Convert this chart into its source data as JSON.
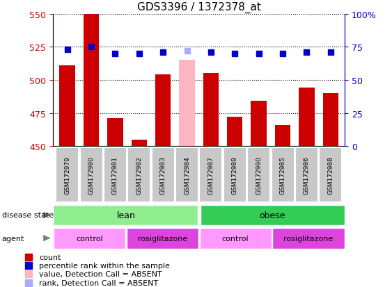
{
  "title": "GDS3396 / 1372378_at",
  "samples": [
    "GSM172979",
    "GSM172980",
    "GSM172981",
    "GSM172982",
    "GSM172983",
    "GSM172984",
    "GSM172987",
    "GSM172989",
    "GSM172990",
    "GSM172985",
    "GSM172986",
    "GSM172988"
  ],
  "count_values": [
    511,
    550,
    471,
    455,
    504,
    null,
    505,
    472,
    484,
    466,
    494,
    490
  ],
  "absent_value": 515,
  "absent_index": 5,
  "rank_values": [
    73,
    75,
    70,
    70,
    71,
    null,
    71,
    70,
    70,
    70,
    71,
    71
  ],
  "absent_rank": 72,
  "ylim_left": [
    450,
    550
  ],
  "ylim_right": [
    0,
    100
  ],
  "yticks_left": [
    450,
    475,
    500,
    525,
    550
  ],
  "yticks_right": [
    0,
    25,
    50,
    75,
    100
  ],
  "bar_color": "#CC0000",
  "absent_bar_color": "#FFB6C1",
  "rank_color": "#0000CC",
  "absent_rank_color": "#AAAAFF",
  "lean_color": "#90EE90",
  "obese_color": "#33CC55",
  "control_color": "#FF99FF",
  "rosiglitazone_color": "#DD44DD",
  "ylabel_left_color": "#CC0000",
  "ylabel_right_color": "#0000CC",
  "legend_items": [
    {
      "color": "#CC0000",
      "label": "count"
    },
    {
      "color": "#0000CC",
      "label": "percentile rank within the sample"
    },
    {
      "color": "#FFB6C1",
      "label": "value, Detection Call = ABSENT"
    },
    {
      "color": "#AAAAFF",
      "label": "rank, Detection Call = ABSENT"
    }
  ]
}
